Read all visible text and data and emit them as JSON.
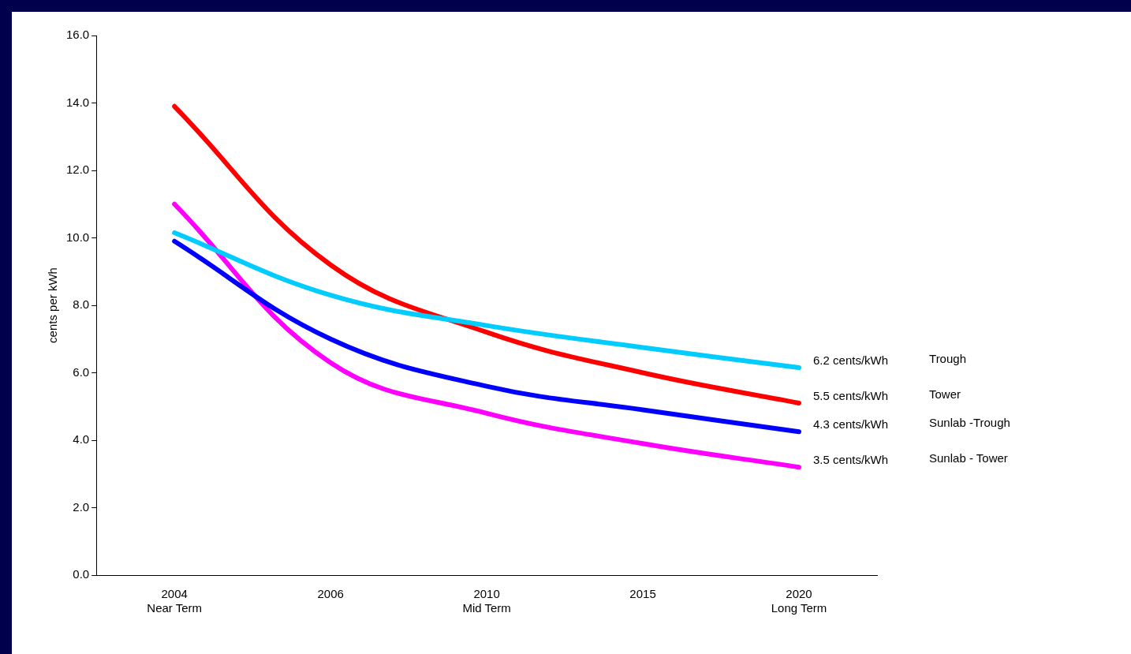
{
  "chart_data": {
    "type": "line",
    "ylabel": "cents per kWh",
    "categories": [
      "2004\nNear Term",
      "2006",
      "2010\nMid Term",
      "2015",
      "2020\nLong Term"
    ],
    "ylim": [
      0,
      16
    ],
    "yticks": [
      {
        "value": 0,
        "label": "0.0"
      },
      {
        "value": 2,
        "label": "2.0"
      },
      {
        "value": 4,
        "label": "4.0"
      },
      {
        "value": 6,
        "label": "6.0"
      },
      {
        "value": 8,
        "label": "8.0"
      },
      {
        "value": 10,
        "label": "10.0"
      },
      {
        "value": 12,
        "label": "12.0"
      },
      {
        "value": 14,
        "label": "14.0"
      },
      {
        "value": 16,
        "label": "16.0"
      }
    ],
    "grid": false,
    "legend": false,
    "marker": "none",
    "line_style": "solid",
    "series": [
      {
        "name": "Trough",
        "color": "#00ccff",
        "values": [
          10.15,
          8.3,
          7.4,
          6.75,
          6.15
        ]
      },
      {
        "name": "Tower",
        "color": "#ff0000",
        "values": [
          13.9,
          9.2,
          7.2,
          6.0,
          5.1
        ]
      },
      {
        "name": "Sunlab -Trough",
        "color": "#0000ff",
        "values": [
          9.9,
          7.0,
          5.6,
          4.9,
          4.25
        ]
      },
      {
        "name": "Sunlab - Tower",
        "color": "#ff00ff",
        "values": [
          11.0,
          6.3,
          4.8,
          3.9,
          3.2
        ]
      }
    ],
    "annotations": [
      {
        "text": "6.2 cents/kWh",
        "x": "2020\nLong Term",
        "y": 6.15
      },
      {
        "text": "5.5 cents/kWh",
        "x": "2020\nLong Term",
        "y": 5.1
      },
      {
        "text": "4.3 cents/kWh",
        "x": "2020\nLong Term",
        "y": 4.25
      },
      {
        "text": "3.5 cents/kWh",
        "x": "2020\nLong Term",
        "y": 3.2
      }
    ]
  }
}
